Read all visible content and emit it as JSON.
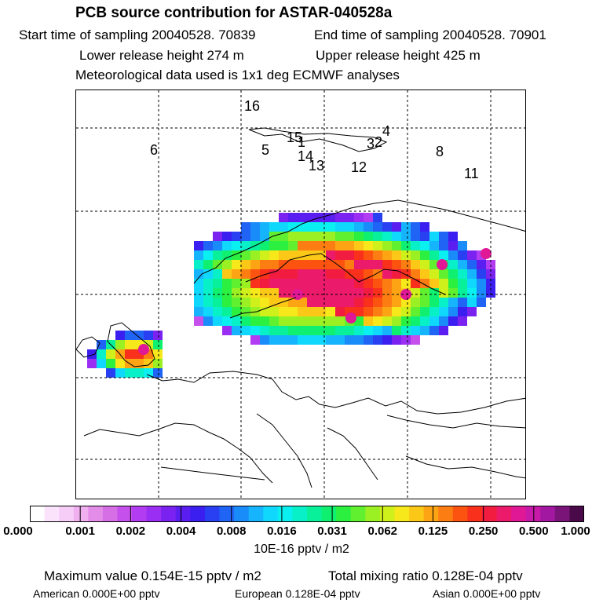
{
  "header": {
    "title": "PCB source contribution for ASTAR-040528a",
    "start_time": "Start time of sampling 20040528. 70839",
    "end_time": "End time of sampling 20040528. 70901",
    "lower_release": "Lower release height  274 m",
    "upper_release": "Upper release height  425 m",
    "met_data": "Meteorological data used is 1x1 deg ECMWF analyses"
  },
  "map": {
    "point_labels": [
      "16",
      "6",
      "5",
      "15",
      "1",
      "2",
      "3",
      "4",
      "14",
      "13",
      "12",
      "8",
      "11"
    ]
  },
  "colorbar": {
    "ticks": [
      "0.000",
      "0.001",
      "0.002",
      "0.004",
      "0.008",
      "0.016",
      "0.031",
      "0.062",
      "0.125",
      "0.250",
      "0.500",
      "1.000"
    ],
    "unit": "10E-16 pptv / m2",
    "colors": [
      "#ffffff",
      "#fbe3fb",
      "#f6cdf6",
      "#f0b0f0",
      "#e48de8",
      "#d66ee6",
      "#c650ec",
      "#b23cf2",
      "#9a2ef2",
      "#7a22f0",
      "#5a1ef0",
      "#3b1ff0",
      "#2840f2",
      "#2064f6",
      "#1a8cfa",
      "#16b4fc",
      "#10d8fc",
      "#0af0f0",
      "#08f0c8",
      "#08f09a",
      "#10f070",
      "#2cf040",
      "#60f030",
      "#9af022",
      "#d0f01c",
      "#f6e81a",
      "#fcc818",
      "#fca414",
      "#fc7e12",
      "#fc5410",
      "#f8301c",
      "#f21c40",
      "#ec1a6a",
      "#e01896",
      "#c81aa8",
      "#a218a0",
      "#7a1478",
      "#4a0a4a"
    ]
  },
  "stats": {
    "maximum": "Maximum value  0.154E-15 pptv / m2",
    "total": "Total mixing ratio  0.128E-04 pptv",
    "american": "American  0.000E+00 pptv",
    "european": "European  0.128E-04 pptv",
    "asian": "Asian  0.000E+00 pptv"
  }
}
